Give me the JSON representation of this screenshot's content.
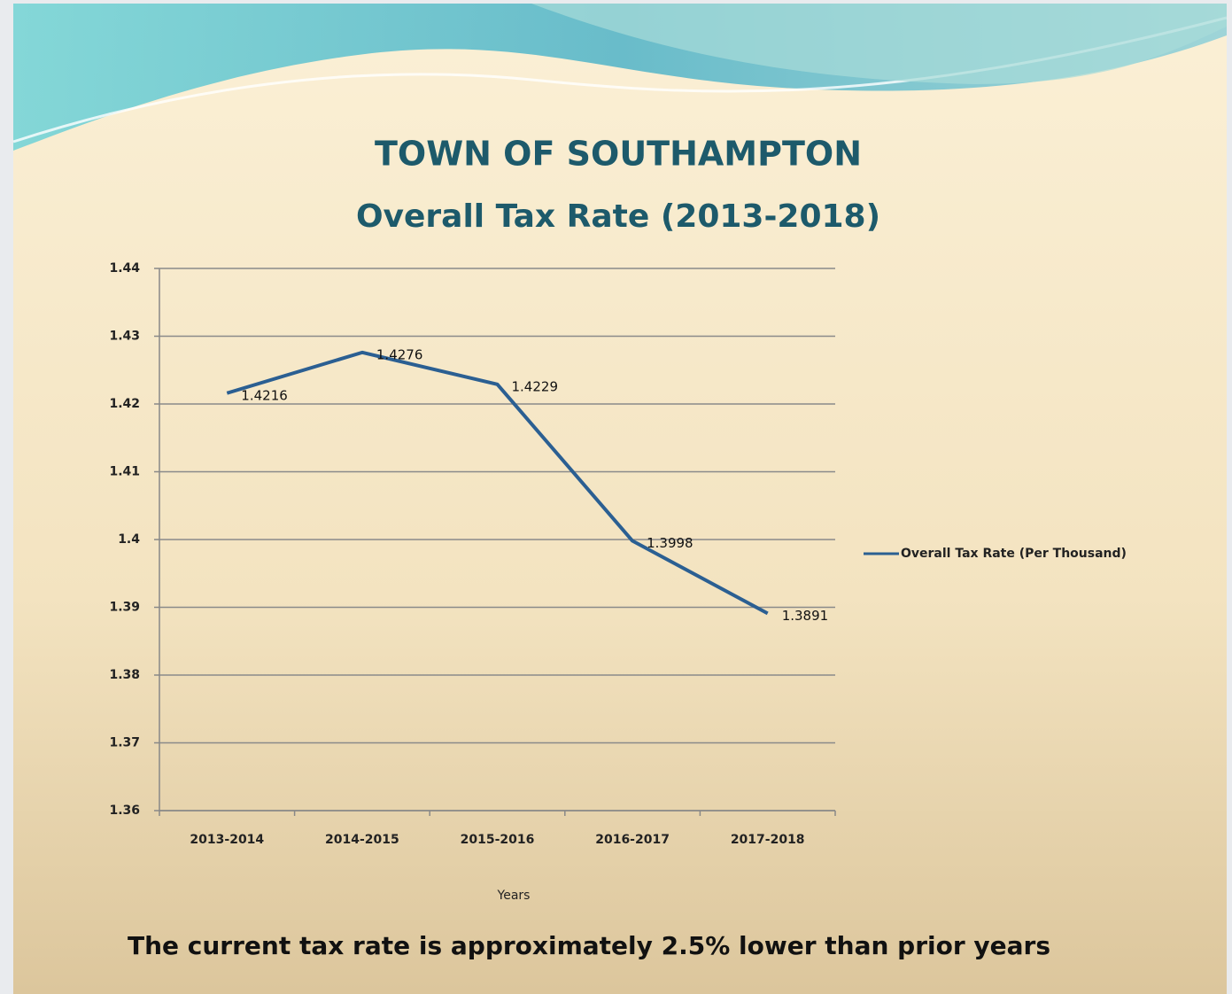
{
  "chart_data": {
    "type": "line",
    "title": "TOWN OF SOUTHAMPTON",
    "subtitle": "Overall Tax Rate (2013-2018)",
    "x_label": "Years",
    "annotation": "The current tax rate is approximately 2.5% lower than prior years",
    "categories": [
      "2013-2014",
      "2014-2015",
      "2015-2016",
      "2016-2017",
      "2017-2018"
    ],
    "series": [
      {
        "name": "Overall Tax Rate (Per Thousand)",
        "color": "#2b5f92",
        "values": [
          1.4216,
          1.4276,
          1.4229,
          1.3998,
          1.3891
        ]
      }
    ],
    "ylim": [
      1.36,
      1.44
    ],
    "yticks": [
      1.36,
      1.37,
      1.38,
      1.39,
      1.4,
      1.41,
      1.42,
      1.43,
      1.44
    ],
    "grid": true,
    "legend": "right"
  }
}
